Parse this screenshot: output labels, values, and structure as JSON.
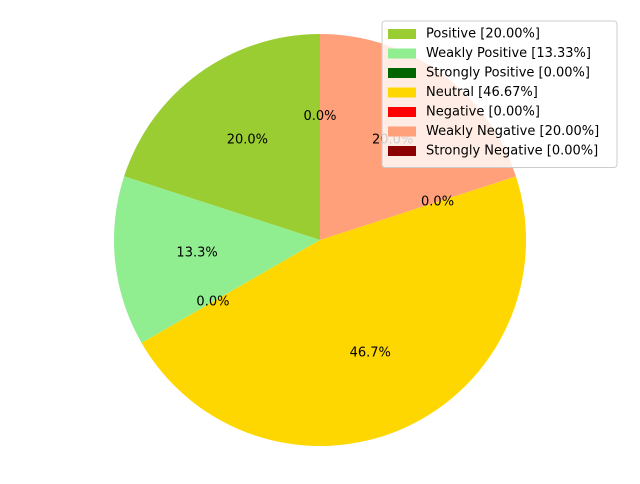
{
  "chart_data": {
    "type": "pie",
    "title": "",
    "start_angle_deg": 90,
    "direction": "counterclockwise",
    "legend_position": "top-right",
    "slices": [
      {
        "label": "Positive",
        "value": 20.0,
        "autopct": "20.0%",
        "legend": "Positive [20.00%]",
        "color": "#9acd32"
      },
      {
        "label": "Weakly Positive",
        "value": 13.33,
        "autopct": "13.3%",
        "legend": "Weakly Positive [13.33%]",
        "color": "#90ee90"
      },
      {
        "label": "Strongly Positive",
        "value": 0.0,
        "autopct": "0.0%",
        "legend": "Strongly Positive [0.00%]",
        "color": "#006400"
      },
      {
        "label": "Neutral",
        "value": 46.67,
        "autopct": "46.7%",
        "legend": "Neutral [46.67%]",
        "color": "#ffd700"
      },
      {
        "label": "Negative",
        "value": 0.0,
        "autopct": "0.0%",
        "legend": "Negative [0.00%]",
        "color": "#ff0000"
      },
      {
        "label": "Weakly Negative",
        "value": 20.0,
        "autopct": "20.0%",
        "legend": "Weakly Negative [20.00%]",
        "color": "#ffa07a"
      },
      {
        "label": "Strongly Negative",
        "value": 0.0,
        "autopct": "0.0%",
        "legend": "Strongly Negative [0.00%]",
        "color": "#8b0000"
      }
    ]
  }
}
